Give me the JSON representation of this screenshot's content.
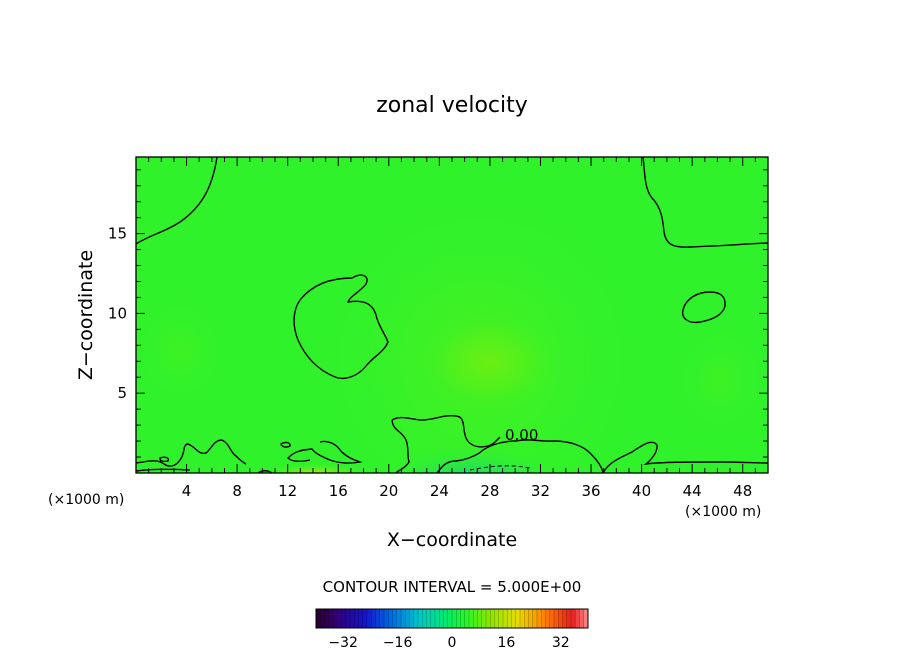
{
  "chart_data": {
    "type": "heatmap",
    "title": "zonal velocity",
    "xlabel": "X−coordinate",
    "ylabel": "Z−coordinate",
    "x_unit_left": "(×1000 m)",
    "x_unit_right": "(×1000 m)",
    "xlim": [
      0,
      50
    ],
    "ylim": [
      0,
      19.8
    ],
    "x_ticks": [
      4,
      8,
      12,
      16,
      20,
      24,
      28,
      32,
      36,
      40,
      44,
      48
    ],
    "y_ticks": [
      5,
      10,
      15
    ],
    "contour_interval_text": "CONTOUR INTERVAL = 5.000E+00",
    "contour_label": "0.00",
    "colorbar": {
      "range": [
        -40,
        40
      ],
      "tick_values": [
        -32,
        -16,
        0,
        16,
        32
      ],
      "tick_labels": [
        "−32",
        "−16",
        "0",
        "16",
        "32"
      ]
    },
    "field_description_levels": {
      "background_value": 0.5,
      "center_max_value": 4,
      "surface_bottom_value": -3
    },
    "colors": {
      "field_base": "#2ff22a",
      "field_high": "#6ef018",
      "field_low": "#1ed870",
      "contour": "#000000"
    }
  }
}
